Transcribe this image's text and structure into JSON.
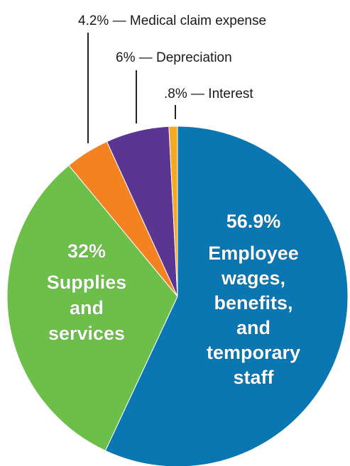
{
  "chart_data": {
    "type": "pie",
    "title": "",
    "slices": [
      {
        "value": 56.9,
        "percent_label": "56.9%",
        "label_lines": [
          "Employee",
          "wages,",
          "benefits,",
          "and",
          "temporary",
          "staff"
        ],
        "color": "#0a77b3",
        "label_position": "inside"
      },
      {
        "value": 32,
        "percent_label": "32%",
        "label_lines": [
          "Supplies",
          "and",
          "services"
        ],
        "color": "#6cc04a",
        "label_position": "inside"
      },
      {
        "value": 4.2,
        "percent_label": "4.2%",
        "callout": "4.2% — Medical claim expense",
        "color": "#f58220",
        "label_position": "outside"
      },
      {
        "value": 6,
        "percent_label": "6%",
        "callout": "6% — Depreciation",
        "color": "#5a3592",
        "label_position": "outside"
      },
      {
        "value": 0.8,
        "percent_label": ".8%",
        "callout": ".8% — Interest",
        "color": "#f7a823",
        "label_position": "outside"
      }
    ]
  }
}
